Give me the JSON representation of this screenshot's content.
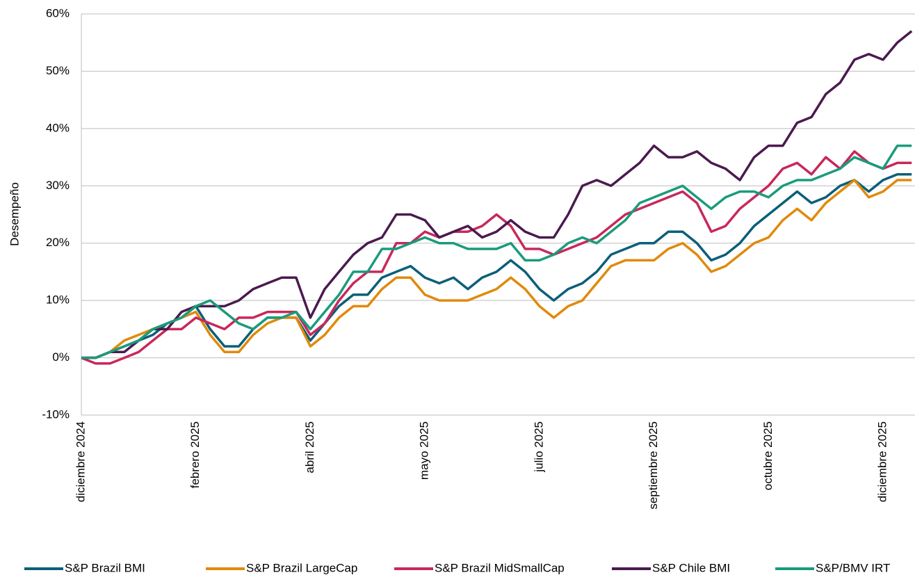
{
  "chart_data": {
    "type": "line",
    "y_label": "Desempeño",
    "categories": [
      "diciembre 2024",
      null,
      null,
      null,
      null,
      null,
      null,
      null,
      "febrero 2025",
      null,
      null,
      null,
      null,
      null,
      null,
      null,
      "abril 2025",
      null,
      null,
      null,
      null,
      null,
      null,
      null,
      "mayo 2025",
      null,
      null,
      null,
      null,
      null,
      null,
      null,
      "julio 2025",
      null,
      null,
      null,
      null,
      null,
      null,
      null,
      "septiembre 2025",
      null,
      null,
      null,
      null,
      null,
      null,
      null,
      "octubre 2025",
      null,
      null,
      null,
      null,
      null,
      null,
      null,
      "diciembre 2025",
      null,
      null
    ],
    "series": [
      {
        "name": "S&P Brazil BMI",
        "color": "#0b5f78",
        "values": [
          0,
          0,
          1,
          2,
          3,
          4,
          6,
          7,
          9,
          5,
          2,
          2,
          5,
          7,
          7,
          7,
          3,
          6,
          9,
          11,
          11,
          14,
          15,
          16,
          14,
          13,
          14,
          12,
          14,
          15,
          17,
          15,
          12,
          10,
          12,
          13,
          15,
          18,
          19,
          20,
          20,
          22,
          22,
          20,
          17,
          18,
          20,
          23,
          25,
          27,
          29,
          27,
          28,
          30,
          31,
          29,
          31,
          32,
          32
        ]
      },
      {
        "name": "S&P Brazil LargeCap",
        "color": "#e08a0b",
        "values": [
          0,
          0,
          1,
          3,
          4,
          5,
          6,
          7,
          8,
          4,
          1,
          1,
          4,
          6,
          7,
          7,
          2,
          4,
          7,
          9,
          9,
          12,
          14,
          14,
          11,
          10,
          10,
          10,
          11,
          12,
          14,
          12,
          9,
          7,
          9,
          10,
          13,
          16,
          17,
          17,
          17,
          19,
          20,
          18,
          15,
          16,
          18,
          20,
          21,
          24,
          26,
          24,
          27,
          29,
          31,
          28,
          29,
          31,
          31
        ]
      },
      {
        "name": "S&P Brazil MidSmallCap",
        "color": "#c8285a",
        "values": [
          0,
          -1,
          -1,
          0,
          1,
          3,
          5,
          5,
          7,
          6,
          5,
          7,
          7,
          8,
          8,
          8,
          4,
          6,
          10,
          13,
          15,
          15,
          20,
          20,
          22,
          21,
          22,
          22,
          23,
          25,
          23,
          19,
          19,
          18,
          19,
          20,
          21,
          23,
          25,
          26,
          27,
          28,
          29,
          27,
          22,
          23,
          26,
          28,
          30,
          33,
          34,
          32,
          35,
          33,
          36,
          34,
          33,
          34,
          34
        ]
      },
      {
        "name": "S&P Chile BMI",
        "color": "#4a1a4f",
        "values": [
          0,
          0,
          1,
          1,
          3,
          5,
          5,
          8,
          9,
          9,
          9,
          10,
          12,
          13,
          14,
          14,
          7,
          12,
          15,
          18,
          20,
          21,
          25,
          25,
          24,
          21,
          22,
          23,
          21,
          22,
          24,
          22,
          21,
          21,
          25,
          30,
          31,
          30,
          32,
          34,
          37,
          35,
          35,
          36,
          34,
          33,
          31,
          35,
          37,
          37,
          41,
          42,
          46,
          48,
          52,
          53,
          52,
          55,
          57
        ]
      },
      {
        "name": "S&P/BMV IRT",
        "color": "#1a9b7c",
        "values": [
          0,
          0,
          1,
          2,
          3,
          5,
          6,
          7,
          9,
          10,
          8,
          6,
          5,
          7,
          7,
          8,
          5,
          8,
          11,
          15,
          15,
          19,
          19,
          20,
          21,
          20,
          20,
          19,
          19,
          19,
          20,
          17,
          17,
          18,
          20,
          21,
          20,
          22,
          24,
          27,
          28,
          29,
          30,
          28,
          26,
          28,
          29,
          29,
          28,
          30,
          31,
          31,
          32,
          33,
          35,
          34,
          33,
          37,
          37
        ]
      }
    ],
    "ylim": [
      -10,
      60
    ],
    "yticks": [
      {
        "value": -10,
        "label": "-10%"
      },
      {
        "value": 0,
        "label": "0%"
      },
      {
        "value": 10,
        "label": "10%"
      },
      {
        "value": 20,
        "label": "20%"
      },
      {
        "value": 30,
        "label": "30%"
      },
      {
        "value": 40,
        "label": "40%"
      },
      {
        "value": 50,
        "label": "50%"
      },
      {
        "value": 60,
        "label": "60%"
      }
    ],
    "grid": true,
    "legend": "bottom"
  }
}
